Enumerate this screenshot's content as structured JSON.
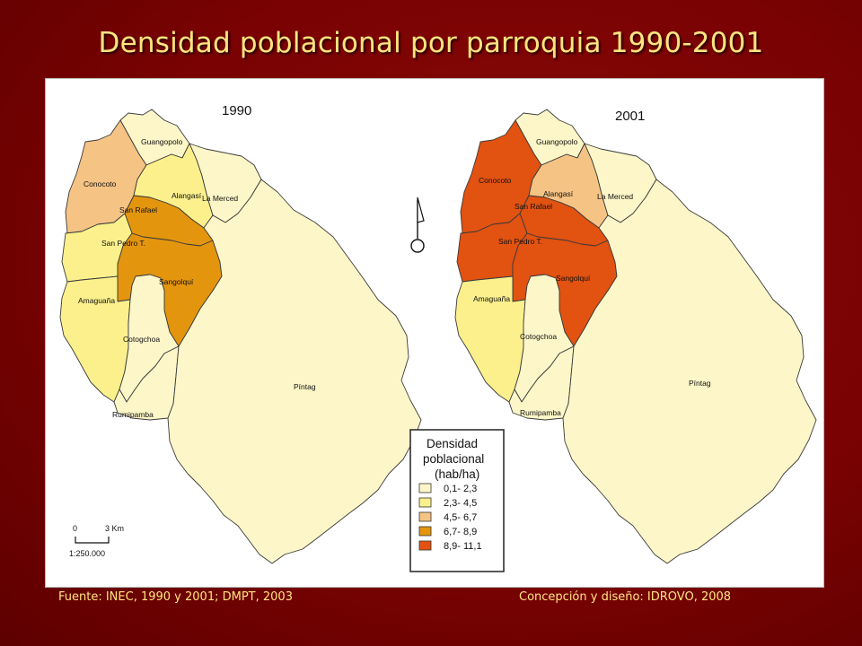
{
  "slide": {
    "title": "Densidad poblacional por parroquia 1990-2001",
    "footer_source": "Fuente: INEC, 1990 y 2001; DMPT, 2003",
    "footer_credit": "Concepción y diseño: IDROVO, 2008"
  },
  "maps": [
    {
      "year": "1990",
      "parishes": [
        {
          "name": "Guangopolo",
          "class": 0
        },
        {
          "name": "Conocoto",
          "class": 2
        },
        {
          "name": "Alangasí",
          "class": 1
        },
        {
          "name": "La Merced",
          "class": 0
        },
        {
          "name": "San Rafael",
          "class": 3
        },
        {
          "name": "San Pedro T.",
          "class": 1
        },
        {
          "name": "Sangolquí",
          "class": 3
        },
        {
          "name": "Amaguaña",
          "class": 1
        },
        {
          "name": "Cotogchoa",
          "class": 0
        },
        {
          "name": "Rumipamba",
          "class": 0
        },
        {
          "name": "Píntag",
          "class": 0
        }
      ]
    },
    {
      "year": "2001",
      "parishes": [
        {
          "name": "Guangopolo",
          "class": 0
        },
        {
          "name": "Conocoto",
          "class": 4
        },
        {
          "name": "Alangasí",
          "class": 2
        },
        {
          "name": "La Merced",
          "class": 0
        },
        {
          "name": "San Rafael",
          "class": 4
        },
        {
          "name": "San Pedro T.",
          "class": 4
        },
        {
          "name": "Sangolquí",
          "class": 4
        },
        {
          "name": "Amaguaña",
          "class": 1
        },
        {
          "name": "Cotogchoa",
          "class": 0
        },
        {
          "name": "Rumipamba",
          "class": 0
        },
        {
          "name": "Píntag",
          "class": 0
        }
      ]
    }
  ],
  "legend": {
    "title_lines": [
      "Densidad",
      "poblacional",
      "(hab/ha)"
    ],
    "classes": [
      {
        "label": "0,1- 2,3",
        "color": "#fdf6c8"
      },
      {
        "label": "2,3- 4,5",
        "color": "#fbf08c"
      },
      {
        "label": "4,5- 6,7",
        "color": "#f5c384"
      },
      {
        "label": "6,7- 8,9",
        "color": "#e3950e"
      },
      {
        "label": "8,9- 11,1",
        "color": "#e25211"
      }
    ]
  },
  "scale_bar": {
    "start": "0",
    "end": "3 Km",
    "ratio": "1:250.000"
  },
  "north_arrow_icon": "north-arrow-icon"
}
